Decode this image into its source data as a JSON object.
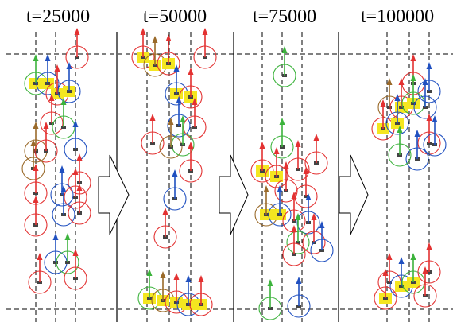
{
  "panels": [
    {
      "title": "t=25000"
    },
    {
      "title": "t=50000"
    },
    {
      "title": "t=75000"
    },
    {
      "title": "t=100000"
    }
  ]
}
